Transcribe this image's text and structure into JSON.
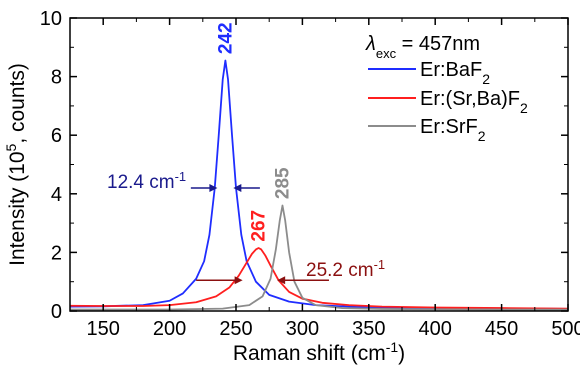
{
  "chart_data": {
    "type": "line",
    "xlabel_main": "Raman shift (cm",
    "xlabel_sup": "-1",
    "xlabel_end": ")",
    "ylabel_main": "Intensity (10",
    "ylabel_sup": "5",
    "ylabel_end": ", counts)",
    "xlim": [
      125,
      500
    ],
    "ylim": [
      0,
      10
    ],
    "xticks": [
      150,
      200,
      250,
      300,
      350,
      400,
      450,
      500
    ],
    "yticks": [
      0,
      2,
      4,
      6,
      8,
      10
    ],
    "grid": false,
    "legend_position": "top-right",
    "legend_title": {
      "lambda": "λ",
      "sub": "exc",
      "text": " = 457nm"
    },
    "series": [
      {
        "name": "Er:BaF2",
        "name_main": "Er:BaF",
        "name_sub": "2",
        "color": "#1f2dff",
        "x": [
          125,
          150,
          180,
          200,
          210,
          220,
          226,
          230,
          234,
          237,
          240,
          242,
          244,
          247,
          250,
          254,
          258,
          265,
          275,
          290,
          310,
          350,
          400,
          450,
          500
        ],
        "y": [
          0.15,
          0.16,
          0.2,
          0.35,
          0.6,
          1.1,
          1.7,
          2.6,
          4.2,
          6.0,
          7.9,
          8.55,
          7.9,
          6.0,
          4.2,
          2.6,
          1.7,
          1.0,
          0.55,
          0.32,
          0.2,
          0.12,
          0.1,
          0.09,
          0.07
        ]
      },
      {
        "name": "Er:(Sr,Ba)F2",
        "name_main": "Er:(Sr,Ba)F",
        "name_sub": "2",
        "color": "#ff1f1f",
        "x": [
          125,
          150,
          180,
          200,
          220,
          235,
          245,
          252,
          258,
          262,
          265,
          267,
          269,
          272,
          276,
          282,
          290,
          300,
          315,
          335,
          360,
          400,
          450,
          500
        ],
        "y": [
          0.18,
          0.17,
          0.17,
          0.2,
          0.3,
          0.5,
          0.8,
          1.2,
          1.65,
          1.95,
          2.1,
          2.15,
          2.1,
          1.9,
          1.55,
          1.05,
          0.65,
          0.42,
          0.28,
          0.2,
          0.15,
          0.12,
          0.1,
          0.08
        ]
      },
      {
        "name": "Er:SrF2",
        "name_main": "Er:SrF",
        "name_sub": "2",
        "color": "#8c8c8c",
        "x": [
          125,
          200,
          240,
          260,
          270,
          276,
          280,
          283,
          285,
          287,
          290,
          294,
          300,
          310,
          330,
          360,
          400,
          450,
          500
        ],
        "y": [
          0.05,
          0.05,
          0.08,
          0.2,
          0.5,
          1.1,
          2.1,
          3.1,
          3.6,
          3.1,
          2.0,
          1.0,
          0.45,
          0.2,
          0.1,
          0.07,
          0.06,
          0.05,
          0.05
        ]
      }
    ],
    "peak_labels": [
      {
        "text": "242",
        "x": 242,
        "y": 8.7,
        "color": "#1f2dff"
      },
      {
        "text": "267",
        "x": 267,
        "y": 2.3,
        "color": "#ff1f1f"
      },
      {
        "text": "285",
        "x": 285,
        "y": 3.75,
        "color": "#8c8c8c"
      }
    ],
    "fwhm_annotations": [
      {
        "label_main": "12.4 cm",
        "label_sup": "-1",
        "color": "#1a1a8c",
        "y": 4.2,
        "left_peak_edge": 236,
        "right_peak_edge": 248,
        "arrow_left_start": 216,
        "arrow_right_start": 268
      },
      {
        "label_main": "25.2 cm",
        "label_sup": "-1",
        "color": "#8b1010",
        "y": 1.05,
        "left_peak_edge": 255,
        "right_peak_edge": 281,
        "arrow_left_start": 220,
        "arrow_right_start": 320
      }
    ]
  }
}
